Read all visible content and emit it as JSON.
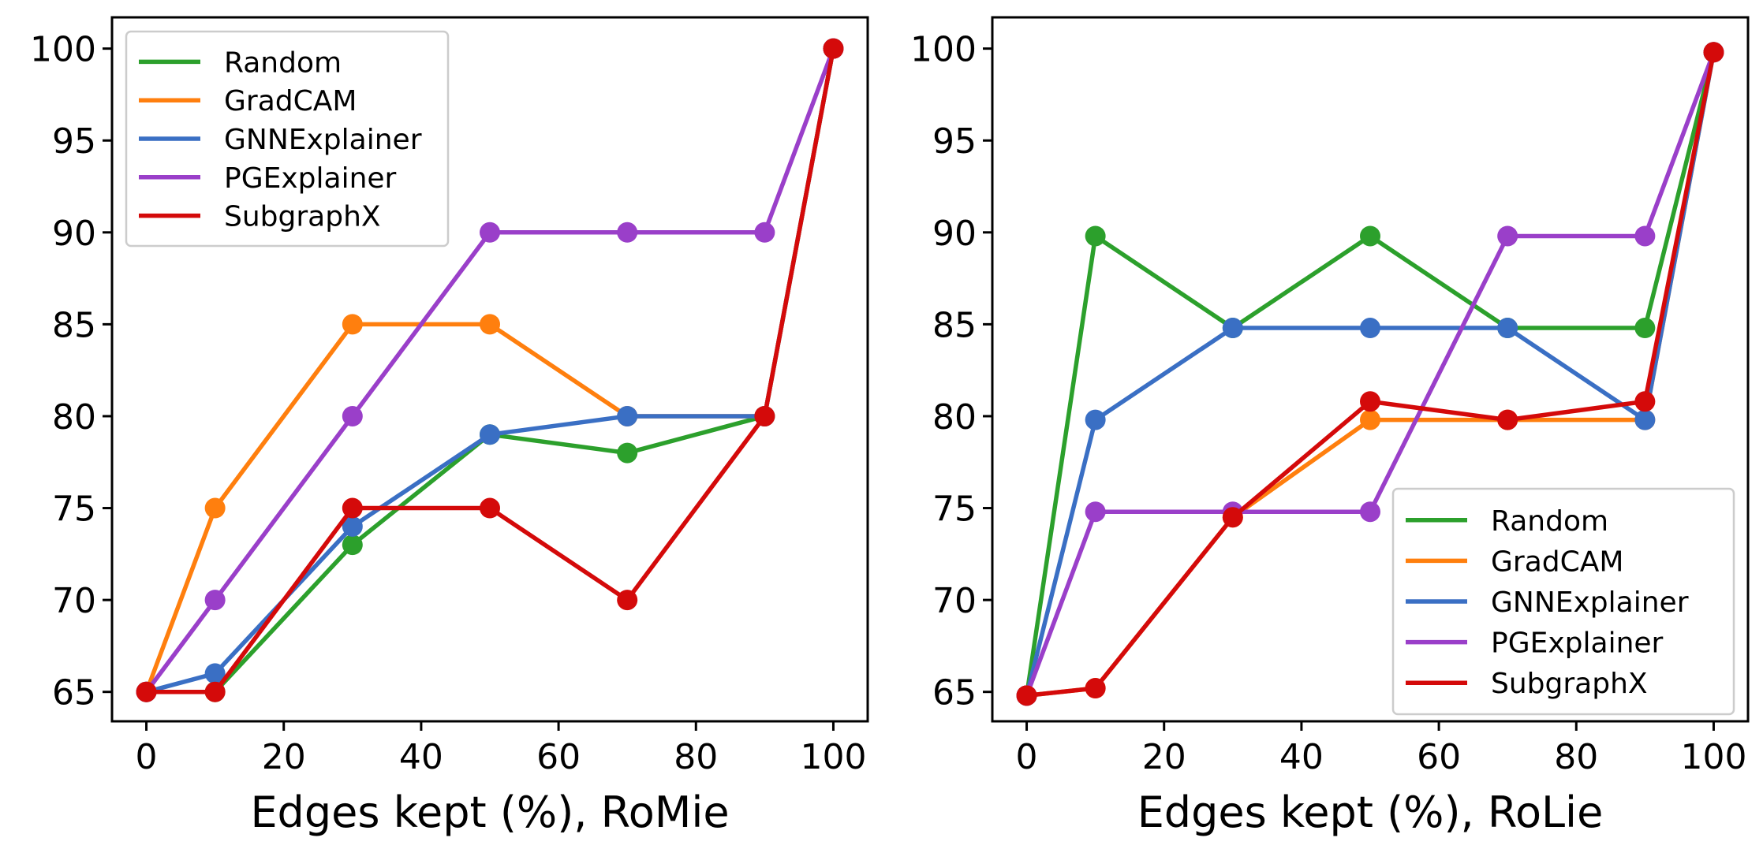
{
  "chart_data": [
    {
      "type": "line",
      "xlabel": "Edges kept (%), RoMie",
      "ylabel": "",
      "title": "",
      "xlim": [
        -5,
        105
      ],
      "ylim": [
        63.4,
        101.7
      ],
      "xticks": [
        0,
        20,
        40,
        60,
        80,
        100
      ],
      "yticks": [
        65,
        70,
        75,
        80,
        85,
        90,
        95,
        100
      ],
      "grid": false,
      "legend_position": "top-left",
      "x": [
        0,
        10,
        30,
        50,
        70,
        90,
        100
      ],
      "series": [
        {
          "name": "Random",
          "color": "#2ca02c",
          "values": [
            65,
            65,
            73,
            79,
            78,
            80,
            100
          ]
        },
        {
          "name": "GradCAM",
          "color": "#ff7f0e",
          "values": [
            65,
            75,
            85,
            85,
            80,
            80,
            100
          ]
        },
        {
          "name": "GNNExplainer",
          "color": "#3a6fc4",
          "values": [
            65,
            66,
            74,
            79,
            80,
            80,
            100
          ]
        },
        {
          "name": "PGExplainer",
          "color": "#9a3fc9",
          "values": [
            65,
            70,
            80,
            90,
            90,
            90,
            100
          ]
        },
        {
          "name": "SubgraphX",
          "color": "#d40a0a",
          "values": [
            65,
            65,
            75,
            75,
            70,
            80,
            100
          ]
        }
      ]
    },
    {
      "type": "line",
      "xlabel": "Edges kept (%), RoLie",
      "ylabel": "",
      "title": "",
      "xlim": [
        -5,
        105
      ],
      "ylim": [
        63.4,
        101.7
      ],
      "xticks": [
        0,
        20,
        40,
        60,
        80,
        100
      ],
      "yticks": [
        65,
        70,
        75,
        80,
        85,
        90,
        95,
        100
      ],
      "grid": false,
      "legend_position": "bottom-right",
      "x": [
        0,
        10,
        30,
        50,
        70,
        90,
        100
      ],
      "series": [
        {
          "name": "Random",
          "color": "#2ca02c",
          "values": [
            64.8,
            89.8,
            84.8,
            89.8,
            84.8,
            84.8,
            99.8
          ]
        },
        {
          "name": "GradCAM",
          "color": "#ff7f0e",
          "values": [
            64.8,
            65.2,
            74.5,
            79.8,
            79.8,
            79.8,
            99.8
          ]
        },
        {
          "name": "GNNExplainer",
          "color": "#3a6fc4",
          "values": [
            64.8,
            79.8,
            84.8,
            84.8,
            84.8,
            79.8,
            99.8
          ]
        },
        {
          "name": "PGExplainer",
          "color": "#9a3fc9",
          "values": [
            64.8,
            74.8,
            74.8,
            74.8,
            89.8,
            89.8,
            99.8
          ]
        },
        {
          "name": "SubgraphX",
          "color": "#d40a0a",
          "values": [
            64.8,
            65.2,
            74.5,
            80.8,
            79.8,
            80.8,
            99.8
          ]
        }
      ]
    }
  ]
}
